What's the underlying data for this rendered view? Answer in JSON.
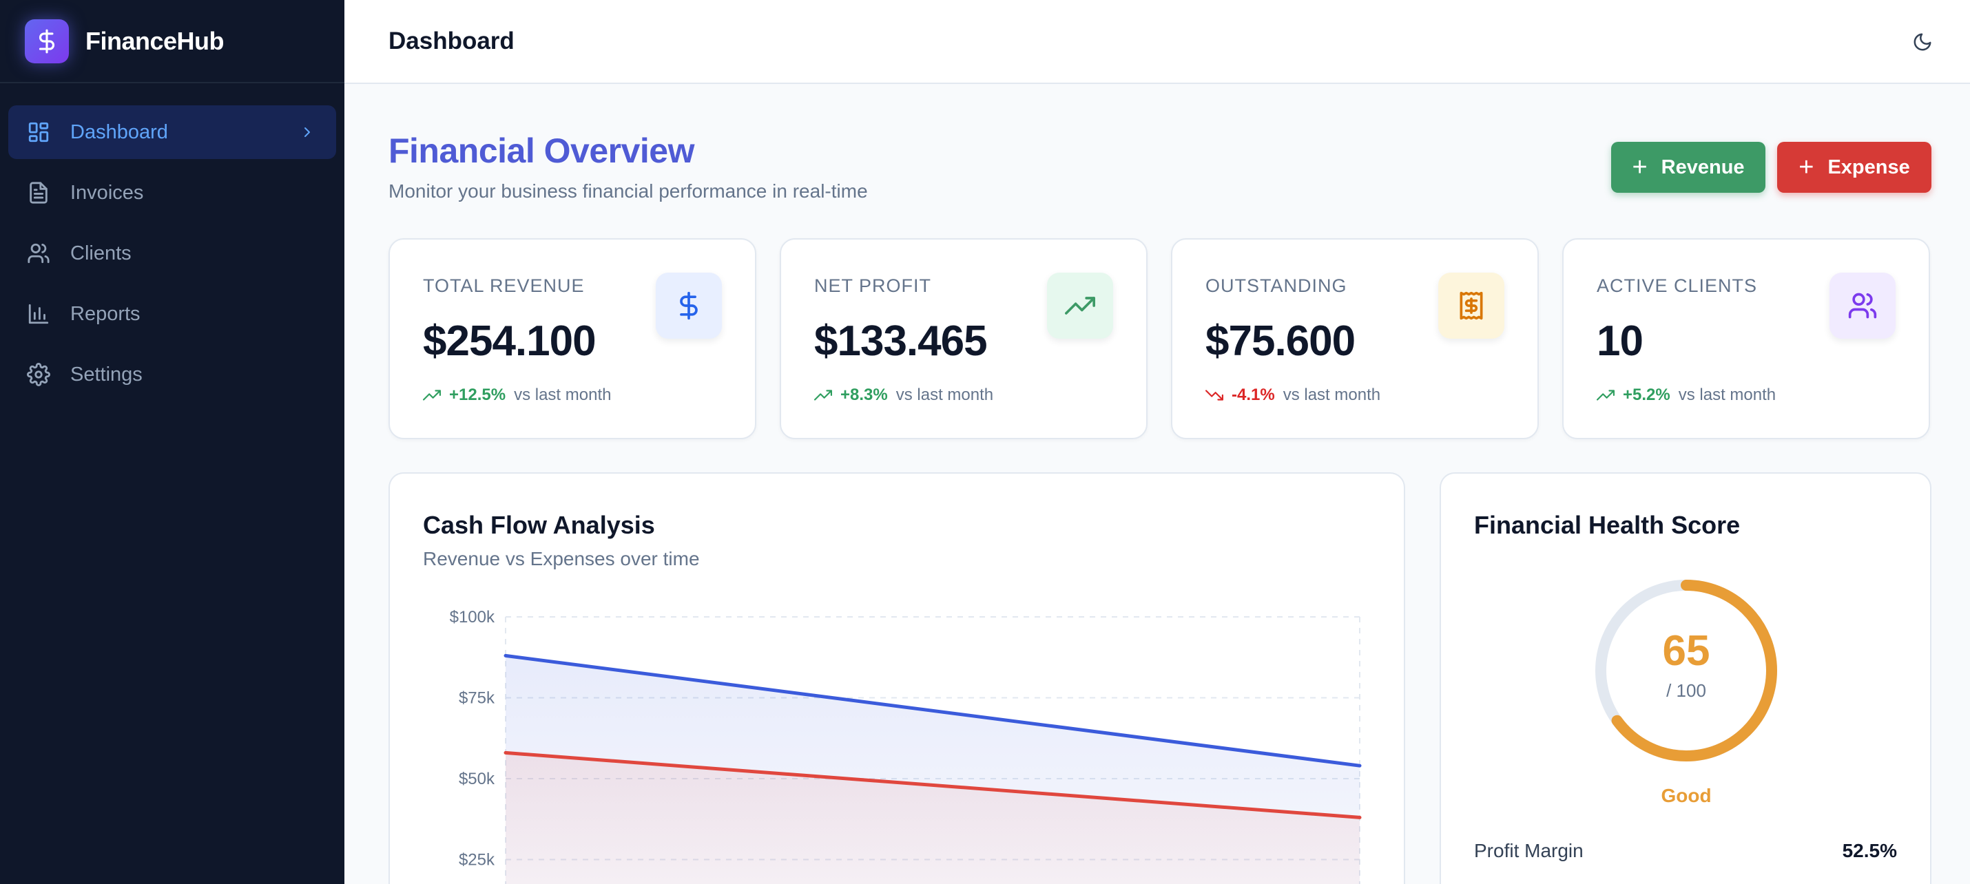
{
  "app": {
    "name": "FinanceHub"
  },
  "sidebar": {
    "items": [
      {
        "label": "Dashboard",
        "icon": "dashboard-icon",
        "active": true
      },
      {
        "label": "Invoices",
        "icon": "file-text-icon",
        "active": false
      },
      {
        "label": "Clients",
        "icon": "users-icon",
        "active": false
      },
      {
        "label": "Reports",
        "icon": "bar-chart-icon",
        "active": false
      },
      {
        "label": "Settings",
        "icon": "gear-icon",
        "active": false
      }
    ]
  },
  "header": {
    "title": "Dashboard",
    "theme_icon": "moon-icon"
  },
  "page": {
    "title": "Financial Overview",
    "subtitle": "Monitor your business financial performance in real-time",
    "add_revenue_label": "Revenue",
    "add_expense_label": "Expense"
  },
  "stats": [
    {
      "label": "TOTAL REVENUE",
      "value": "$254.100",
      "trend": "+12.5%",
      "direction": "up",
      "vs": "vs last month",
      "icon": "dollar-icon",
      "color": "#2563eb",
      "bg": "#e8efff"
    },
    {
      "label": "NET PROFIT",
      "value": "$133.465",
      "trend": "+8.3%",
      "direction": "up",
      "vs": "vs last month",
      "icon": "trending-up-icon",
      "color": "#3d9a66",
      "bg": "#e6f8ee"
    },
    {
      "label": "OUTSTANDING",
      "value": "$75.600",
      "trend": "-4.1%",
      "direction": "down",
      "vs": "vs last month",
      "icon": "receipt-icon",
      "color": "#d97706",
      "bg": "#fdf5dc"
    },
    {
      "label": "ACTIVE CLIENTS",
      "value": "10",
      "trend": "+5.2%",
      "direction": "up",
      "vs": "vs last month",
      "icon": "users-icon",
      "color": "#7c3aed",
      "bg": "#f1ebff"
    }
  ],
  "colors": {
    "up": "#2f9e5f",
    "down": "#dc2626",
    "revenue_line": "#3b5bdb",
    "expense_line": "#e0473e"
  },
  "cash_flow": {
    "title": "Cash Flow Analysis",
    "subtitle": "Revenue vs Expenses over time"
  },
  "chart_data": {
    "type": "area",
    "title": "Cash Flow Analysis",
    "subtitle": "Revenue vs Expenses over time",
    "y_tick_labels": [
      "$100k",
      "$75k",
      "$50k",
      "$25k"
    ],
    "y_ticks": [
      100000,
      75000,
      50000,
      25000
    ],
    "ylim": [
      0,
      100000
    ],
    "x": [
      0,
      1
    ],
    "series": [
      {
        "values": [
          88000,
          54000
        ],
        "color": "#3b5bdb"
      },
      {
        "values": [
          58000,
          38000
        ],
        "color": "#e0473e"
      }
    ],
    "grid": true
  },
  "health": {
    "title": "Financial Health Score",
    "score": "65",
    "max_label": "/ 100",
    "score_fraction": 0.65,
    "status": "Good",
    "metric_label": "Profit Margin",
    "metric_value": "52.5%"
  }
}
